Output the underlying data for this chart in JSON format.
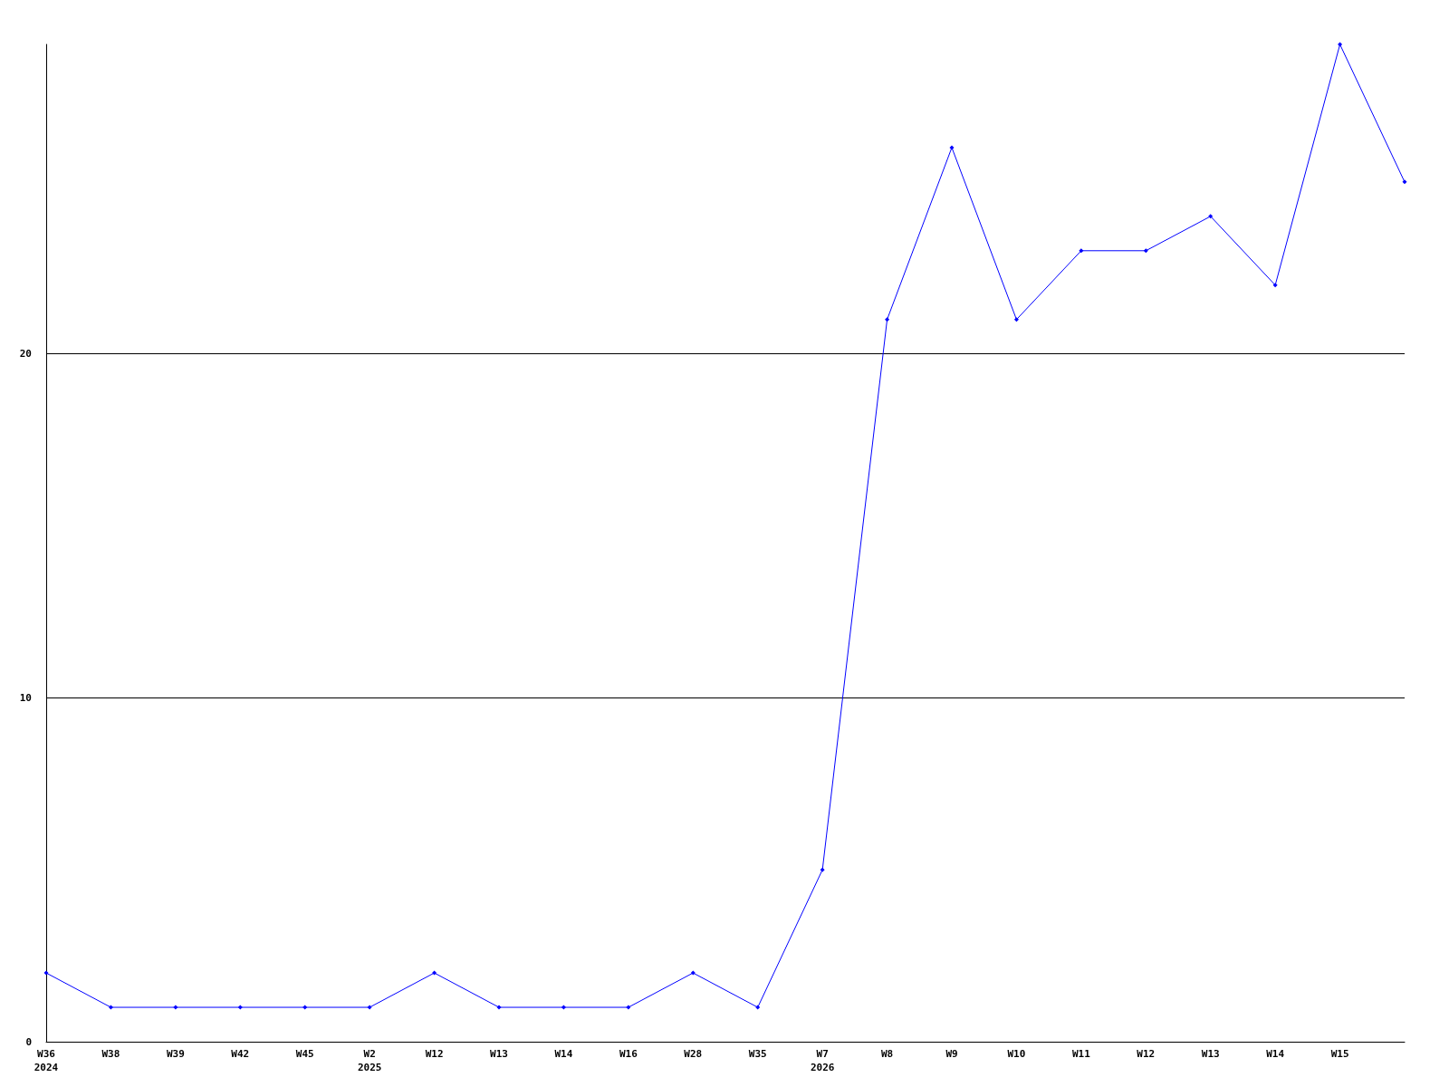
{
  "chart_data": {
    "type": "line",
    "categories": [
      "W36\n2024",
      "W38",
      "W39",
      "W42",
      "W45",
      "W2\n2025",
      "W12",
      "W13",
      "W14",
      "W16",
      "W28",
      "W35",
      "W7\n2026",
      "W8",
      "W9",
      "W10",
      "W11",
      "W12",
      "W13",
      "W14",
      "W15",
      null
    ],
    "series": [
      {
        "color": "#0000ff",
        "values": [
          2,
          1,
          1,
          1,
          1,
          1,
          2,
          1,
          1,
          1,
          2,
          1,
          5,
          21,
          26,
          21,
          23,
          23,
          24,
          22,
          29,
          25
        ]
      }
    ],
    "ylim": [
      0,
      29
    ],
    "yticks": [
      0,
      10,
      20
    ],
    "grid": "y",
    "marker": "diamond",
    "line_style": "solid"
  }
}
